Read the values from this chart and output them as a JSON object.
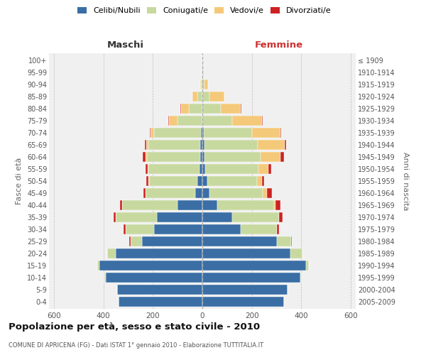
{
  "age_groups": [
    "0-4",
    "5-9",
    "10-14",
    "15-19",
    "20-24",
    "25-29",
    "30-34",
    "35-39",
    "40-44",
    "45-49",
    "50-54",
    "55-59",
    "60-64",
    "65-69",
    "70-74",
    "75-79",
    "80-84",
    "85-89",
    "90-94",
    "95-99",
    "100+"
  ],
  "birth_years": [
    "2005-2009",
    "2000-2004",
    "1995-1999",
    "1990-1994",
    "1985-1989",
    "1980-1984",
    "1975-1979",
    "1970-1974",
    "1965-1969",
    "1960-1964",
    "1955-1959",
    "1950-1954",
    "1945-1949",
    "1940-1944",
    "1935-1939",
    "1930-1934",
    "1925-1929",
    "1920-1924",
    "1915-1919",
    "1910-1914",
    "≤ 1909"
  ],
  "males": {
    "celibi": [
      340,
      345,
      390,
      415,
      350,
      245,
      195,
      185,
      100,
      30,
      20,
      12,
      10,
      8,
      5,
      0,
      0,
      0,
      0,
      0,
      0
    ],
    "coniugati": [
      0,
      0,
      5,
      10,
      35,
      45,
      115,
      165,
      225,
      200,
      195,
      205,
      215,
      210,
      190,
      100,
      55,
      20,
      5,
      2,
      0
    ],
    "vedovi": [
      0,
      0,
      0,
      0,
      0,
      0,
      0,
      0,
      0,
      0,
      3,
      3,
      5,
      10,
      15,
      35,
      30,
      20,
      3,
      0,
      0
    ],
    "divorziati": [
      0,
      0,
      0,
      0,
      0,
      5,
      8,
      8,
      8,
      8,
      8,
      10,
      10,
      5,
      3,
      3,
      5,
      0,
      0,
      0,
      0
    ]
  },
  "females": {
    "nubili": [
      330,
      345,
      395,
      420,
      355,
      300,
      155,
      120,
      60,
      30,
      20,
      12,
      10,
      8,
      5,
      0,
      0,
      0,
      0,
      0,
      0
    ],
    "coniugate": [
      0,
      0,
      5,
      10,
      50,
      60,
      145,
      190,
      230,
      215,
      200,
      215,
      225,
      215,
      195,
      120,
      75,
      30,
      8,
      2,
      0
    ],
    "vedove": [
      0,
      0,
      0,
      0,
      0,
      0,
      0,
      0,
      5,
      15,
      20,
      40,
      80,
      110,
      115,
      120,
      80,
      60,
      15,
      3,
      0
    ],
    "divorziate": [
      0,
      0,
      0,
      0,
      0,
      3,
      10,
      15,
      20,
      20,
      10,
      10,
      15,
      5,
      5,
      3,
      3,
      0,
      0,
      0,
      0
    ]
  },
  "color_celibi": "#3a6ea5",
  "color_coniugati": "#c8d9a0",
  "color_vedovi": "#f5c97a",
  "color_divorziati": "#cc2222",
  "title": "Popolazione per età, sesso e stato civile - 2010",
  "subtitle": "COMUNE DI APRICENA (FG) - Dati ISTAT 1° gennaio 2010 - Elaborazione TUTTITALIA.IT",
  "label_maschi": "Maschi",
  "label_femmine": "Femmine",
  "ylabel_left": "Fasce di età",
  "ylabel_right": "Anni di nascita",
  "xlim": 620,
  "bg_color": "#f0f0f0",
  "grid_color": "#bbbbbb",
  "legend_labels": [
    "Celibi/Nubili",
    "Coniugati/e",
    "Vedovi/e",
    "Divorziati/e"
  ]
}
